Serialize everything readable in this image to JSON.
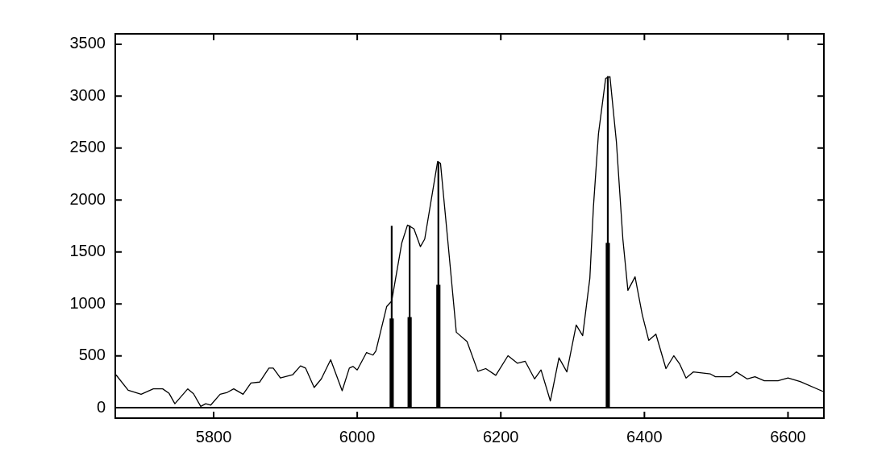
{
  "chart_data": {
    "type": "line",
    "xlim": [
      5663,
      6650
    ],
    "ylim": [
      -100,
      3600
    ],
    "xticks": [
      5800,
      6000,
      6200,
      6400,
      6600
    ],
    "yticks": [
      0,
      500,
      1000,
      1500,
      2000,
      2500,
      3000,
      3500
    ],
    "grid": false,
    "legend": false,
    "marker": "none",
    "ref_lines": [
      {
        "axis": "y",
        "value": 0,
        "color": "#000000"
      }
    ],
    "series": [
      {
        "color": "#000000",
        "x": [
          5664,
          5681,
          5699,
          5716,
          5729,
          5738,
          5746,
          5764,
          5772,
          5782,
          5789,
          5796,
          5809,
          5819,
          5828,
          5841,
          5852,
          5864,
          5877,
          5883,
          5893,
          5910,
          5921,
          5928,
          5940,
          5950,
          5963,
          5979,
          5989,
          5994,
          6000,
          6013,
          6022,
          6026,
          6041,
          6048,
          6062,
          6070,
          6079,
          6088,
          6094,
          6112,
          6116,
          6127,
          6138,
          6153,
          6168,
          6179,
          6193,
          6210,
          6223,
          6234,
          6247,
          6256,
          6269,
          6281,
          6292,
          6305,
          6314,
          6324,
          6329,
          6336,
          6346,
          6352,
          6361,
          6370,
          6377,
          6387,
          6397,
          6406,
          6416,
          6430,
          6441,
          6449,
          6458,
          6468,
          6492,
          6499,
          6520,
          6528,
          6543,
          6554,
          6567,
          6586,
          6600,
          6617,
          6649
        ],
        "values": [
          317,
          169,
          130,
          182,
          182,
          138,
          39,
          182,
          135,
          13,
          39,
          26,
          130,
          148,
          182,
          130,
          239,
          247,
          382,
          382,
          286,
          317,
          403,
          382,
          195,
          278,
          462,
          164,
          382,
          398,
          364,
          532,
          507,
          546,
          974,
          1027,
          1585,
          1759,
          1723,
          1551,
          1624,
          2372,
          2352,
          1546,
          727,
          637,
          351,
          377,
          312,
          501,
          429,
          447,
          278,
          364,
          65,
          481,
          345,
          797,
          694,
          1247,
          1935,
          2637,
          3170,
          3188,
          2559,
          1624,
          1130,
          1260,
          896,
          649,
          709,
          377,
          501,
          423,
          286,
          345,
          325,
          299,
          299,
          345,
          278,
          299,
          260,
          260,
          286,
          252,
          156
        ]
      },
      {
        "type": "bar",
        "color": "#000000",
        "x": [
          6048,
          6073,
          6113,
          6349
        ],
        "values": [
          1749,
          1753,
          2364,
          3190
        ]
      },
      {
        "type": "bar",
        "color": "#000000",
        "x": [
          6048,
          6073,
          6113,
          6349
        ],
        "values": [
          857,
          870,
          1182,
          1585
        ]
      }
    ]
  }
}
